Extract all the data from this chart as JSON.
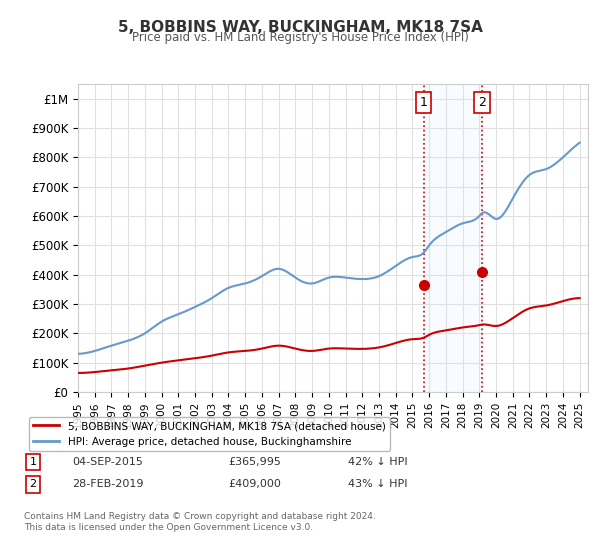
{
  "title": "5, BOBBINS WAY, BUCKINGHAM, MK18 7SA",
  "subtitle": "Price paid vs. HM Land Registry's House Price Index (HPI)",
  "xlabel": "",
  "ylabel": "",
  "ylim": [
    0,
    1050000
  ],
  "xlim_start": 1995.0,
  "xlim_end": 2025.5,
  "background_color": "#ffffff",
  "plot_bg_color": "#ffffff",
  "grid_color": "#e0e0e0",
  "red_line_color": "#cc0000",
  "blue_line_color": "#6699cc",
  "shade_color": "#ddeeff",
  "marker1_date": 2015.67,
  "marker1_value": 365995,
  "marker2_date": 2019.17,
  "marker2_value": 409000,
  "marker1_label": "1",
  "marker2_label": "2",
  "vline_color": "#cc0000",
  "vline_style": ":",
  "legend_red": "5, BOBBINS WAY, BUCKINGHAM, MK18 7SA (detached house)",
  "legend_blue": "HPI: Average price, detached house, Buckinghamshire",
  "table_row1": [
    "1",
    "04-SEP-2015",
    "£365,995",
    "42% ↓ HPI"
  ],
  "table_row2": [
    "2",
    "28-FEB-2019",
    "£409,000",
    "43% ↓ HPI"
  ],
  "footer": "Contains HM Land Registry data © Crown copyright and database right 2024.\nThis data is licensed under the Open Government Licence v3.0.",
  "yticks": [
    0,
    100000,
    200000,
    300000,
    400000,
    500000,
    600000,
    700000,
    800000,
    900000,
    1000000
  ],
  "ytick_labels": [
    "£0",
    "£100K",
    "£200K",
    "£300K",
    "£400K",
    "£500K",
    "£600K",
    "£700K",
    "£800K",
    "£900K",
    "£1M"
  ],
  "xtick_years": [
    1995,
    1996,
    1997,
    1998,
    1999,
    2000,
    2001,
    2002,
    2003,
    2004,
    2005,
    2006,
    2007,
    2008,
    2009,
    2010,
    2011,
    2012,
    2013,
    2014,
    2015,
    2016,
    2017,
    2018,
    2019,
    2020,
    2021,
    2022,
    2023,
    2024,
    2025
  ]
}
